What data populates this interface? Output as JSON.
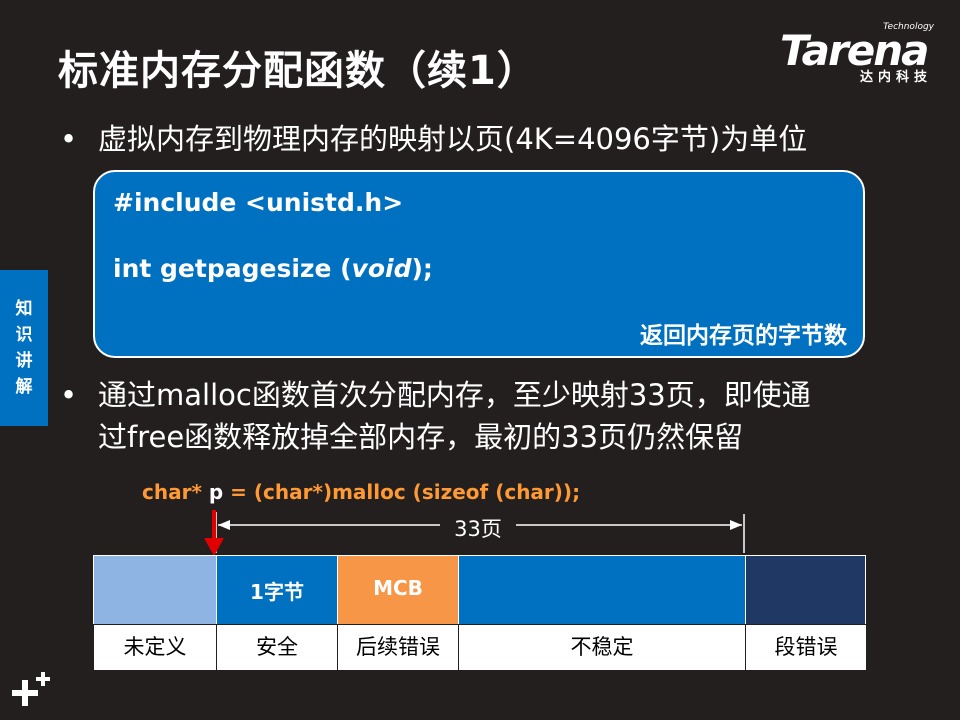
{
  "slide": {
    "title": "标准内存分配函数（续1）",
    "side_tab": "知识讲解"
  },
  "logo": {
    "technology": "Technology",
    "word": "Tarena",
    "chinese": "达内科技"
  },
  "bullets": [
    {
      "marker": "•",
      "text": "虚拟内存到物理内存的映射以页(4K=4096字节)为单位"
    },
    {
      "marker": "•",
      "lines": [
        "通过malloc函数首次分配内存，至少映射33页，即使通",
        "过free函数释放掉全部内存，最初的33页仍然保留"
      ]
    }
  ],
  "code_box": {
    "line1": "#include <unistd.h>",
    "line2_prefix": "int getpagesize (",
    "line2_italic": "void",
    "line2_suffix": ");",
    "note": "返回内存页的字节数"
  },
  "diagram": {
    "code_prefix": "char* ",
    "code_p": "p",
    "code_suffix": " = (char*)malloc (sizeof (char));",
    "span_label": "33页",
    "segments": [
      {
        "label": "",
        "caption": "未定义",
        "color": "#8eb4e3"
      },
      {
        "label": "1字节",
        "caption": "安全",
        "color": "#0070c0"
      },
      {
        "label": "MCB",
        "caption": "后续错误",
        "color": "#f79646"
      },
      {
        "label": "",
        "caption": "不稳定",
        "color": "#0070c0"
      },
      {
        "label": "",
        "caption": "段错误",
        "color": "#1f3864"
      }
    ]
  }
}
